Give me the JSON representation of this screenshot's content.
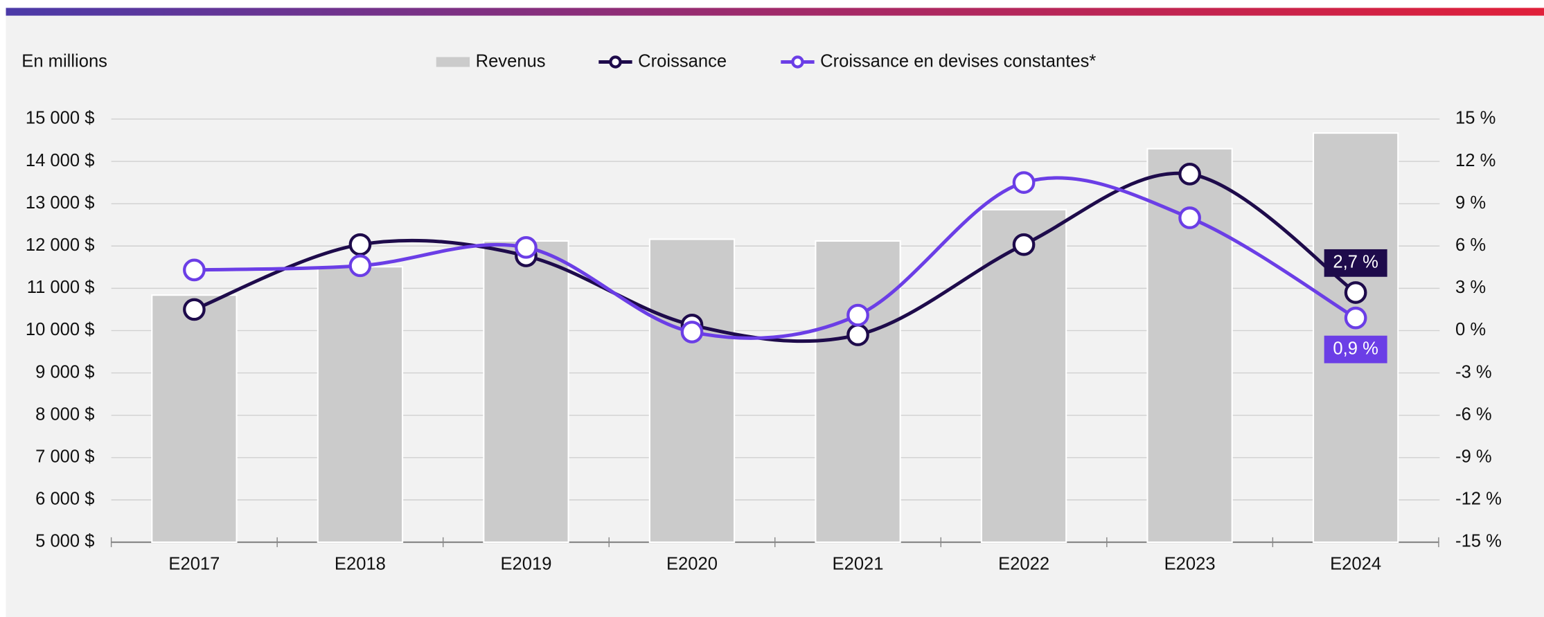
{
  "chart_data": {
    "type": "bar-line",
    "y_label": "En millions",
    "categories": [
      "E2017",
      "E2018",
      "E2019",
      "E2020",
      "E2021",
      "E2022",
      "E2023",
      "E2024"
    ],
    "series": [
      {
        "name": "Revenus",
        "color": "#cbcbcb",
        "type": "bar",
        "values": [
          10840,
          11510,
          12120,
          12160,
          12120,
          12860,
          14300,
          14670
        ]
      },
      {
        "name": "Croissance",
        "color": "#1e0b4b",
        "type": "line",
        "axis": "y2",
        "values": [
          1.5,
          6.1,
          5.3,
          0.4,
          -0.3,
          6.1,
          11.1,
          2.7
        ],
        "value_labels": [
          null,
          null,
          null,
          null,
          null,
          null,
          null,
          "2,7 %"
        ]
      },
      {
        "name": "Croissance en devises constantes*",
        "color": "#6b3ee6",
        "type": "line",
        "axis": "y2",
        "values": [
          4.3,
          4.6,
          5.9,
          -0.1,
          1.1,
          10.5,
          8.0,
          0.9
        ],
        "value_labels": [
          null,
          null,
          null,
          null,
          null,
          null,
          null,
          "0,9 %"
        ]
      }
    ],
    "ylim": [
      5000,
      15000
    ],
    "yticks": [
      {
        "value": 5000,
        "label": "5 000 $"
      },
      {
        "value": 6000,
        "label": "6 000 $"
      },
      {
        "value": 7000,
        "label": "7 000 $"
      },
      {
        "value": 8000,
        "label": "8 000 $"
      },
      {
        "value": 9000,
        "label": "9 000 $"
      },
      {
        "value": 10000,
        "label": "10 000 $"
      },
      {
        "value": 11000,
        "label": "11 000 $"
      },
      {
        "value": 12000,
        "label": "12 000 $"
      },
      {
        "value": 13000,
        "label": "13 000 $"
      },
      {
        "value": 14000,
        "label": "14 000 $"
      },
      {
        "value": 15000,
        "label": "15 000 $"
      }
    ],
    "y2lim": [
      -15,
      15
    ],
    "y2ticks": [
      {
        "value": -15,
        "label": "-15 %"
      },
      {
        "value": -12,
        "label": "-12 %"
      },
      {
        "value": -9,
        "label": "-9 %"
      },
      {
        "value": -6,
        "label": "-6 %"
      },
      {
        "value": -3,
        "label": "-3 %"
      },
      {
        "value": 0,
        "label": "0 %"
      },
      {
        "value": 3,
        "label": "3 %"
      },
      {
        "value": 6,
        "label": "6 %"
      },
      {
        "value": 9,
        "label": "9 %"
      },
      {
        "value": 12,
        "label": "12 %"
      },
      {
        "value": 15,
        "label": "15 %"
      }
    ],
    "grid": true,
    "legend": "top"
  }
}
